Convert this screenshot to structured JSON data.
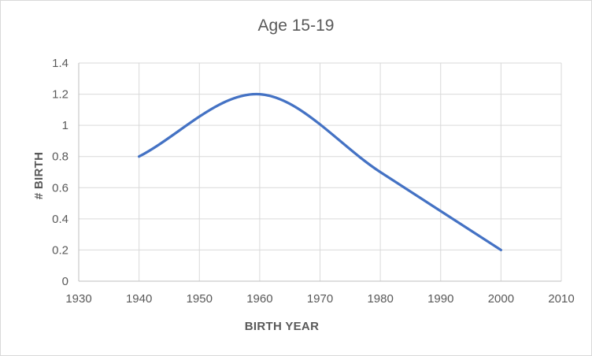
{
  "chart": {
    "background": "#FFFFFF",
    "border_color": "#D9D9D9"
  },
  "chart_data": {
    "type": "line",
    "title": "Age 15-19",
    "xlabel": "BIRTH YEAR",
    "ylabel": "# BIRTH",
    "series": [
      {
        "name": "Age 15-19",
        "x": [
          1940,
          1960,
          1980,
          2000
        ],
        "y": [
          0.8,
          1.2,
          0.7,
          0.2
        ]
      }
    ],
    "smooth": true,
    "markers": false,
    "xlim": [
      1930,
      2010
    ],
    "ylim": [
      0,
      1.4
    ],
    "x_ticks": [
      "1930",
      "1940",
      "1950",
      "1960",
      "1970",
      "1980",
      "1990",
      "2000",
      "2010"
    ],
    "y_ticks": [
      "0",
      "0.2",
      "0.4",
      "0.6",
      "0.8",
      "1",
      "1.2",
      "1.4"
    ],
    "grid": true,
    "legend": "none",
    "line_color": "#4472C4",
    "line_width": 3.25,
    "colors": {
      "text": "#595959",
      "gridline": "#D9D9D9",
      "axis": "#BFBFBF"
    }
  }
}
